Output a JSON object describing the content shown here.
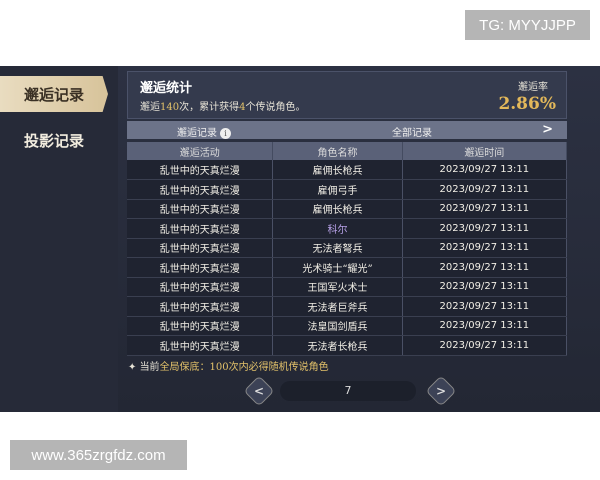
{
  "overlay": {
    "tg_label": "TG: MYYJJPP",
    "site_label": "www.365zrgfdz.com"
  },
  "sidebar": {
    "items": [
      {
        "label": "邂逅记录",
        "active": true
      },
      {
        "label": "投影记录",
        "active": false
      }
    ]
  },
  "stats": {
    "title": "邂逅统计",
    "prefix": "邂逅",
    "count": "140",
    "mid": "次，累计获得",
    "legend_count": "4",
    "suffix": "个传说角色。",
    "rate_label": "邂逅率",
    "rate_value": "2.86%"
  },
  "filter": {
    "label": "邂逅记录",
    "info_icon": "i",
    "selected": "全部记录"
  },
  "table": {
    "headers": [
      "邂逅活动",
      "角色名称",
      "邂逅时间"
    ],
    "rows": [
      [
        "乱世中的天真烂漫",
        "雇佣长枪兵",
        "2023/09/27 13:11"
      ],
      [
        "乱世中的天真烂漫",
        "雇佣弓手",
        "2023/09/27 13:11"
      ],
      [
        "乱世中的天真烂漫",
        "雇佣长枪兵",
        "2023/09/27 13:11"
      ],
      [
        "乱世中的天真烂漫",
        "科尔",
        "2023/09/27 13:11"
      ],
      [
        "乱世中的天真烂漫",
        "无法者弩兵",
        "2023/09/27 13:11"
      ],
      [
        "乱世中的天真烂漫",
        "光术骑士“耀光”",
        "2023/09/27 13:11"
      ],
      [
        "乱世中的天真烂漫",
        "王国军火术士",
        "2023/09/27 13:11"
      ],
      [
        "乱世中的天真烂漫",
        "无法者巨斧兵",
        "2023/09/27 13:11"
      ],
      [
        "乱世中的天真烂漫",
        "法皇国剑盾兵",
        "2023/09/27 13:11"
      ],
      [
        "乱世中的天真烂漫",
        "无法者长枪兵",
        "2023/09/27 13:11"
      ]
    ]
  },
  "guarantee": {
    "prefix": "当前",
    "highlight": "全局保底",
    "rest": "：100次内必得随机传说角色"
  },
  "pagination": {
    "page": "7"
  },
  "colors": {
    "accent_gold": "#e3b85a",
    "rare_purple": "#b8a2e8"
  }
}
